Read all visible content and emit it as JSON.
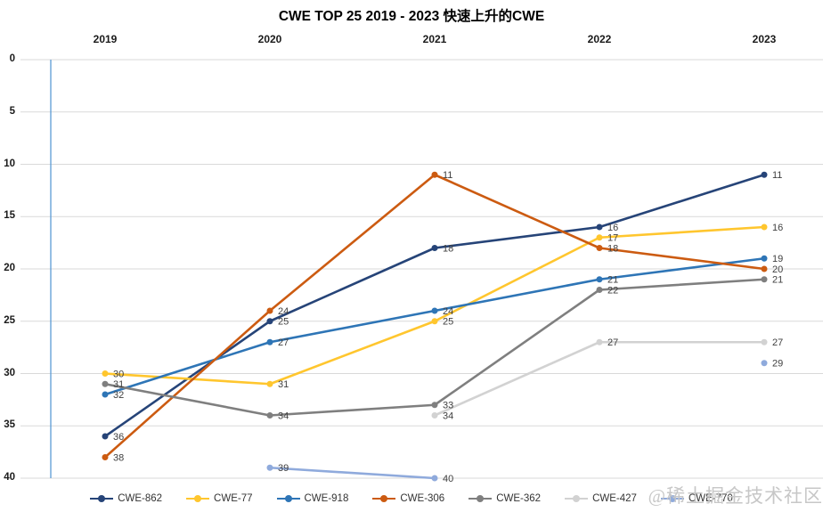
{
  "page": {
    "watermark": "@稀土掘金技术社区"
  },
  "chart_data": {
    "type": "line",
    "title": "CWE TOP 25 2019 - 2023 快速上升的CWE",
    "x_categories": [
      "2019",
      "2020",
      "2021",
      "2022",
      "2023"
    ],
    "x_axis_position": "top",
    "y_axis": {
      "min": 0,
      "max": 40,
      "tick_step": 5,
      "ticks": [
        0,
        5,
        10,
        15,
        20,
        25,
        30,
        35,
        40
      ],
      "inverted": true
    },
    "grid": true,
    "data_labels": true,
    "legend_position": "bottom",
    "series": [
      {
        "name": "CWE-862",
        "color": "#264478",
        "values": [
          36,
          25,
          18,
          16,
          11
        ]
      },
      {
        "name": "CWE-77",
        "color": "#FFC62E",
        "values": [
          30,
          31,
          25,
          17,
          16
        ]
      },
      {
        "name": "CWE-918",
        "color": "#2E75B6",
        "values": [
          32,
          27,
          24,
          21,
          19
        ]
      },
      {
        "name": "CWE-306",
        "color": "#CC5B11",
        "values": [
          38,
          24,
          11,
          18,
          20
        ]
      },
      {
        "name": "CWE-362",
        "color": "#7F7F7F",
        "values": [
          31,
          34,
          33,
          22,
          21
        ]
      },
      {
        "name": "CWE-427",
        "color": "#D2D2D2",
        "values": [
          null,
          null,
          34,
          27,
          27
        ]
      },
      {
        "name": "CWE-770",
        "color": "#8FAADC",
        "values": [
          null,
          39,
          40,
          null,
          29
        ]
      }
    ],
    "colors": {
      "gridline": "#D9D9D9",
      "axis_line": "#5B9BD5",
      "data_label_text": "#404040",
      "tick_label_text": "#1A1A1A"
    }
  }
}
